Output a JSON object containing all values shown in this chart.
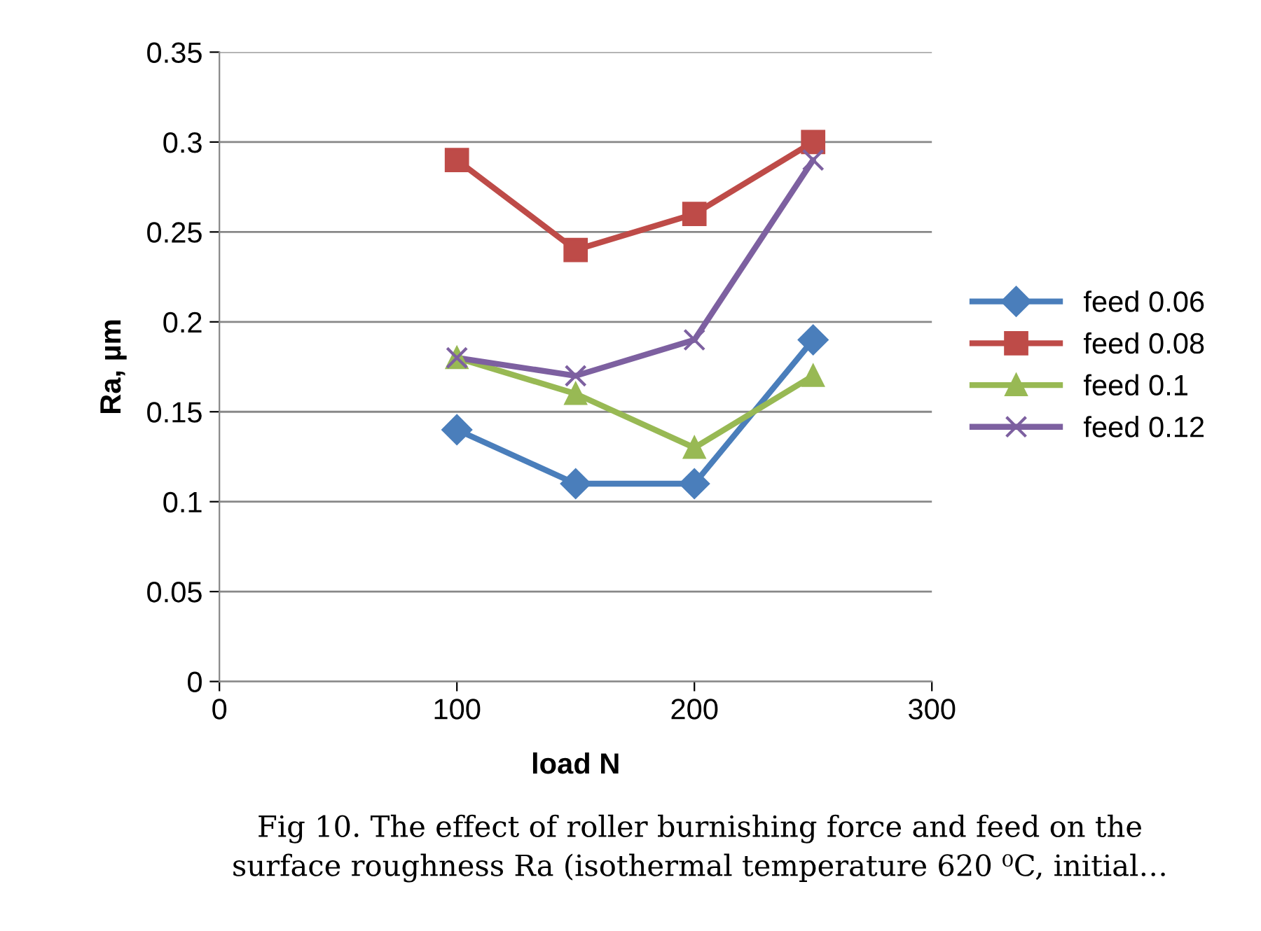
{
  "chart_data": {
    "type": "line",
    "xlabel": "load N",
    "ylabel": "Ra, µm",
    "x": [
      100,
      150,
      200,
      250
    ],
    "series": [
      {
        "name": "feed 0.06",
        "color": "#4a7ebb",
        "marker": "diamond",
        "values": [
          0.14,
          0.11,
          0.11,
          0.19
        ]
      },
      {
        "name": "feed 0.08",
        "color": "#be4b48",
        "marker": "square",
        "values": [
          0.29,
          0.24,
          0.26,
          0.3
        ]
      },
      {
        "name": "feed 0.1",
        "color": "#98b954",
        "marker": "triangle",
        "values": [
          0.18,
          0.16,
          0.13,
          0.17
        ]
      },
      {
        "name": "feed 0.12",
        "color": "#7d60a0",
        "marker": "cross",
        "values": [
          0.18,
          0.17,
          0.19,
          0.29
        ]
      }
    ],
    "xlim": [
      0,
      300
    ],
    "xticks": [
      0,
      100,
      200,
      300
    ],
    "ylim": [
      0,
      0.35
    ],
    "yticks": [
      0,
      0.05,
      0.1,
      0.15,
      0.2,
      0.25,
      0.3,
      0.35
    ],
    "grid": "y",
    "legend": "right",
    "line_style": "solid",
    "annotations": [
      "Fig 10. The effect of roller burnishing force and feed on the",
      "surface roughness Ra (isothermal temperature 620 ⁰C, initial…"
    ]
  }
}
